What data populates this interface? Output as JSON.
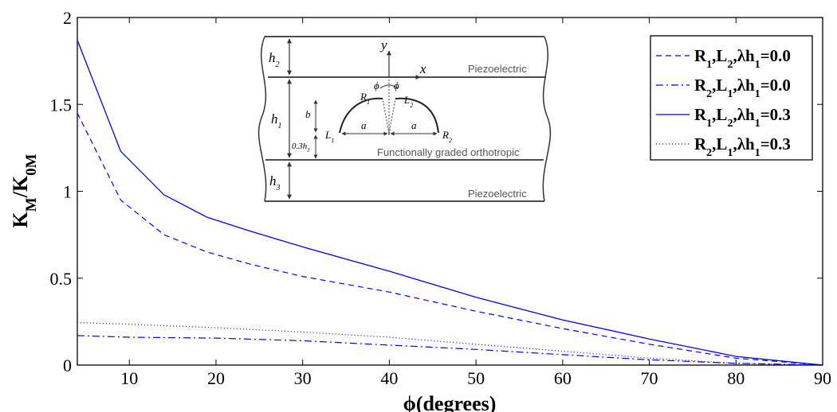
{
  "chart_data": {
    "type": "line",
    "xlabel": "ϕ(degrees)",
    "ylabel_main": "K",
    "ylabel_sub1": "M",
    "ylabel_sep": "/K",
    "ylabel_sub2": "0M",
    "xlim": [
      4,
      90
    ],
    "ylim": [
      0,
      2
    ],
    "xticks": [
      10,
      20,
      30,
      40,
      50,
      60,
      70,
      80,
      90
    ],
    "yticks": [
      0,
      0.5,
      1,
      1.5,
      2
    ],
    "ytick_labels": [
      "0",
      "0.5",
      "1",
      "1.5",
      "2"
    ],
    "grid": false,
    "legend_position": "top-right",
    "series": [
      {
        "legend": [
          {
            "t": "R"
          },
          {
            "t": "1",
            "sub": true
          },
          {
            "t": ",L"
          },
          {
            "t": "2",
            "sub": true
          },
          {
            "t": ",λh"
          },
          {
            "t": "1",
            "sub": true
          },
          {
            "t": "=0.0"
          }
        ],
        "style": "dashed",
        "color": "#0000ee",
        "x": [
          4,
          9,
          14,
          19,
          24,
          30,
          40,
          50,
          60,
          70,
          80,
          90
        ],
        "y": [
          1.45,
          0.95,
          0.75,
          0.65,
          0.58,
          0.51,
          0.42,
          0.31,
          0.21,
          0.12,
          0.04,
          0.0
        ]
      },
      {
        "legend": [
          {
            "t": "R"
          },
          {
            "t": "2",
            "sub": true
          },
          {
            "t": ",L"
          },
          {
            "t": "1",
            "sub": true
          },
          {
            "t": ",λh"
          },
          {
            "t": "1",
            "sub": true
          },
          {
            "t": "=0.0"
          }
        ],
        "style": "dashdot",
        "color": "#0000ee",
        "x": [
          4,
          10,
          20,
          30,
          40,
          50,
          60,
          70,
          80,
          90
        ],
        "y": [
          0.17,
          0.16,
          0.155,
          0.14,
          0.115,
          0.09,
          0.06,
          0.03,
          0.01,
          0.0
        ]
      },
      {
        "legend": [
          {
            "t": "R"
          },
          {
            "t": "1",
            "sub": true
          },
          {
            "t": ",L"
          },
          {
            "t": "2",
            "sub": true
          },
          {
            "t": ",λh"
          },
          {
            "t": "1",
            "sub": true
          },
          {
            "t": "=0.3"
          }
        ],
        "style": "solid",
        "color": "#0000ee",
        "x": [
          4,
          9,
          14,
          19,
          24,
          30,
          40,
          50,
          60,
          70,
          80,
          90
        ],
        "y": [
          1.87,
          1.23,
          0.98,
          0.85,
          0.77,
          0.68,
          0.54,
          0.39,
          0.26,
          0.15,
          0.05,
          0.0
        ]
      },
      {
        "legend": [
          {
            "t": "R"
          },
          {
            "t": "2",
            "sub": true
          },
          {
            "t": ",L"
          },
          {
            "t": "1",
            "sub": true
          },
          {
            "t": ",λh"
          },
          {
            "t": "1",
            "sub": true
          },
          {
            "t": "=0.3"
          }
        ],
        "style": "dotted",
        "color": "#0000ee",
        "x": [
          4,
          10,
          20,
          30,
          40,
          50,
          60,
          70,
          80,
          90
        ],
        "y": [
          0.245,
          0.235,
          0.215,
          0.19,
          0.16,
          0.12,
          0.08,
          0.04,
          0.01,
          0.0
        ]
      }
    ],
    "inset": {
      "layer_top": "Piezoelectric",
      "layer_middle": "Functionally graded orthotropic",
      "layer_bottom": "Piezoelectric",
      "h2": [
        "h",
        "2"
      ],
      "h1": [
        "h",
        "1"
      ],
      "h3": [
        "h",
        "3"
      ],
      "axis_y": "y",
      "axis_x": "x",
      "phi_left": "ϕ",
      "phi_right": "ϕ",
      "R1": [
        "R",
        "1"
      ],
      "L2": [
        "L",
        "2"
      ],
      "L1": [
        "L",
        "1"
      ],
      "R2": [
        "R",
        "2"
      ],
      "b": "b",
      "a_left": "a",
      "a_right": "a",
      "offset": [
        "0.3",
        "h",
        "1"
      ]
    }
  }
}
